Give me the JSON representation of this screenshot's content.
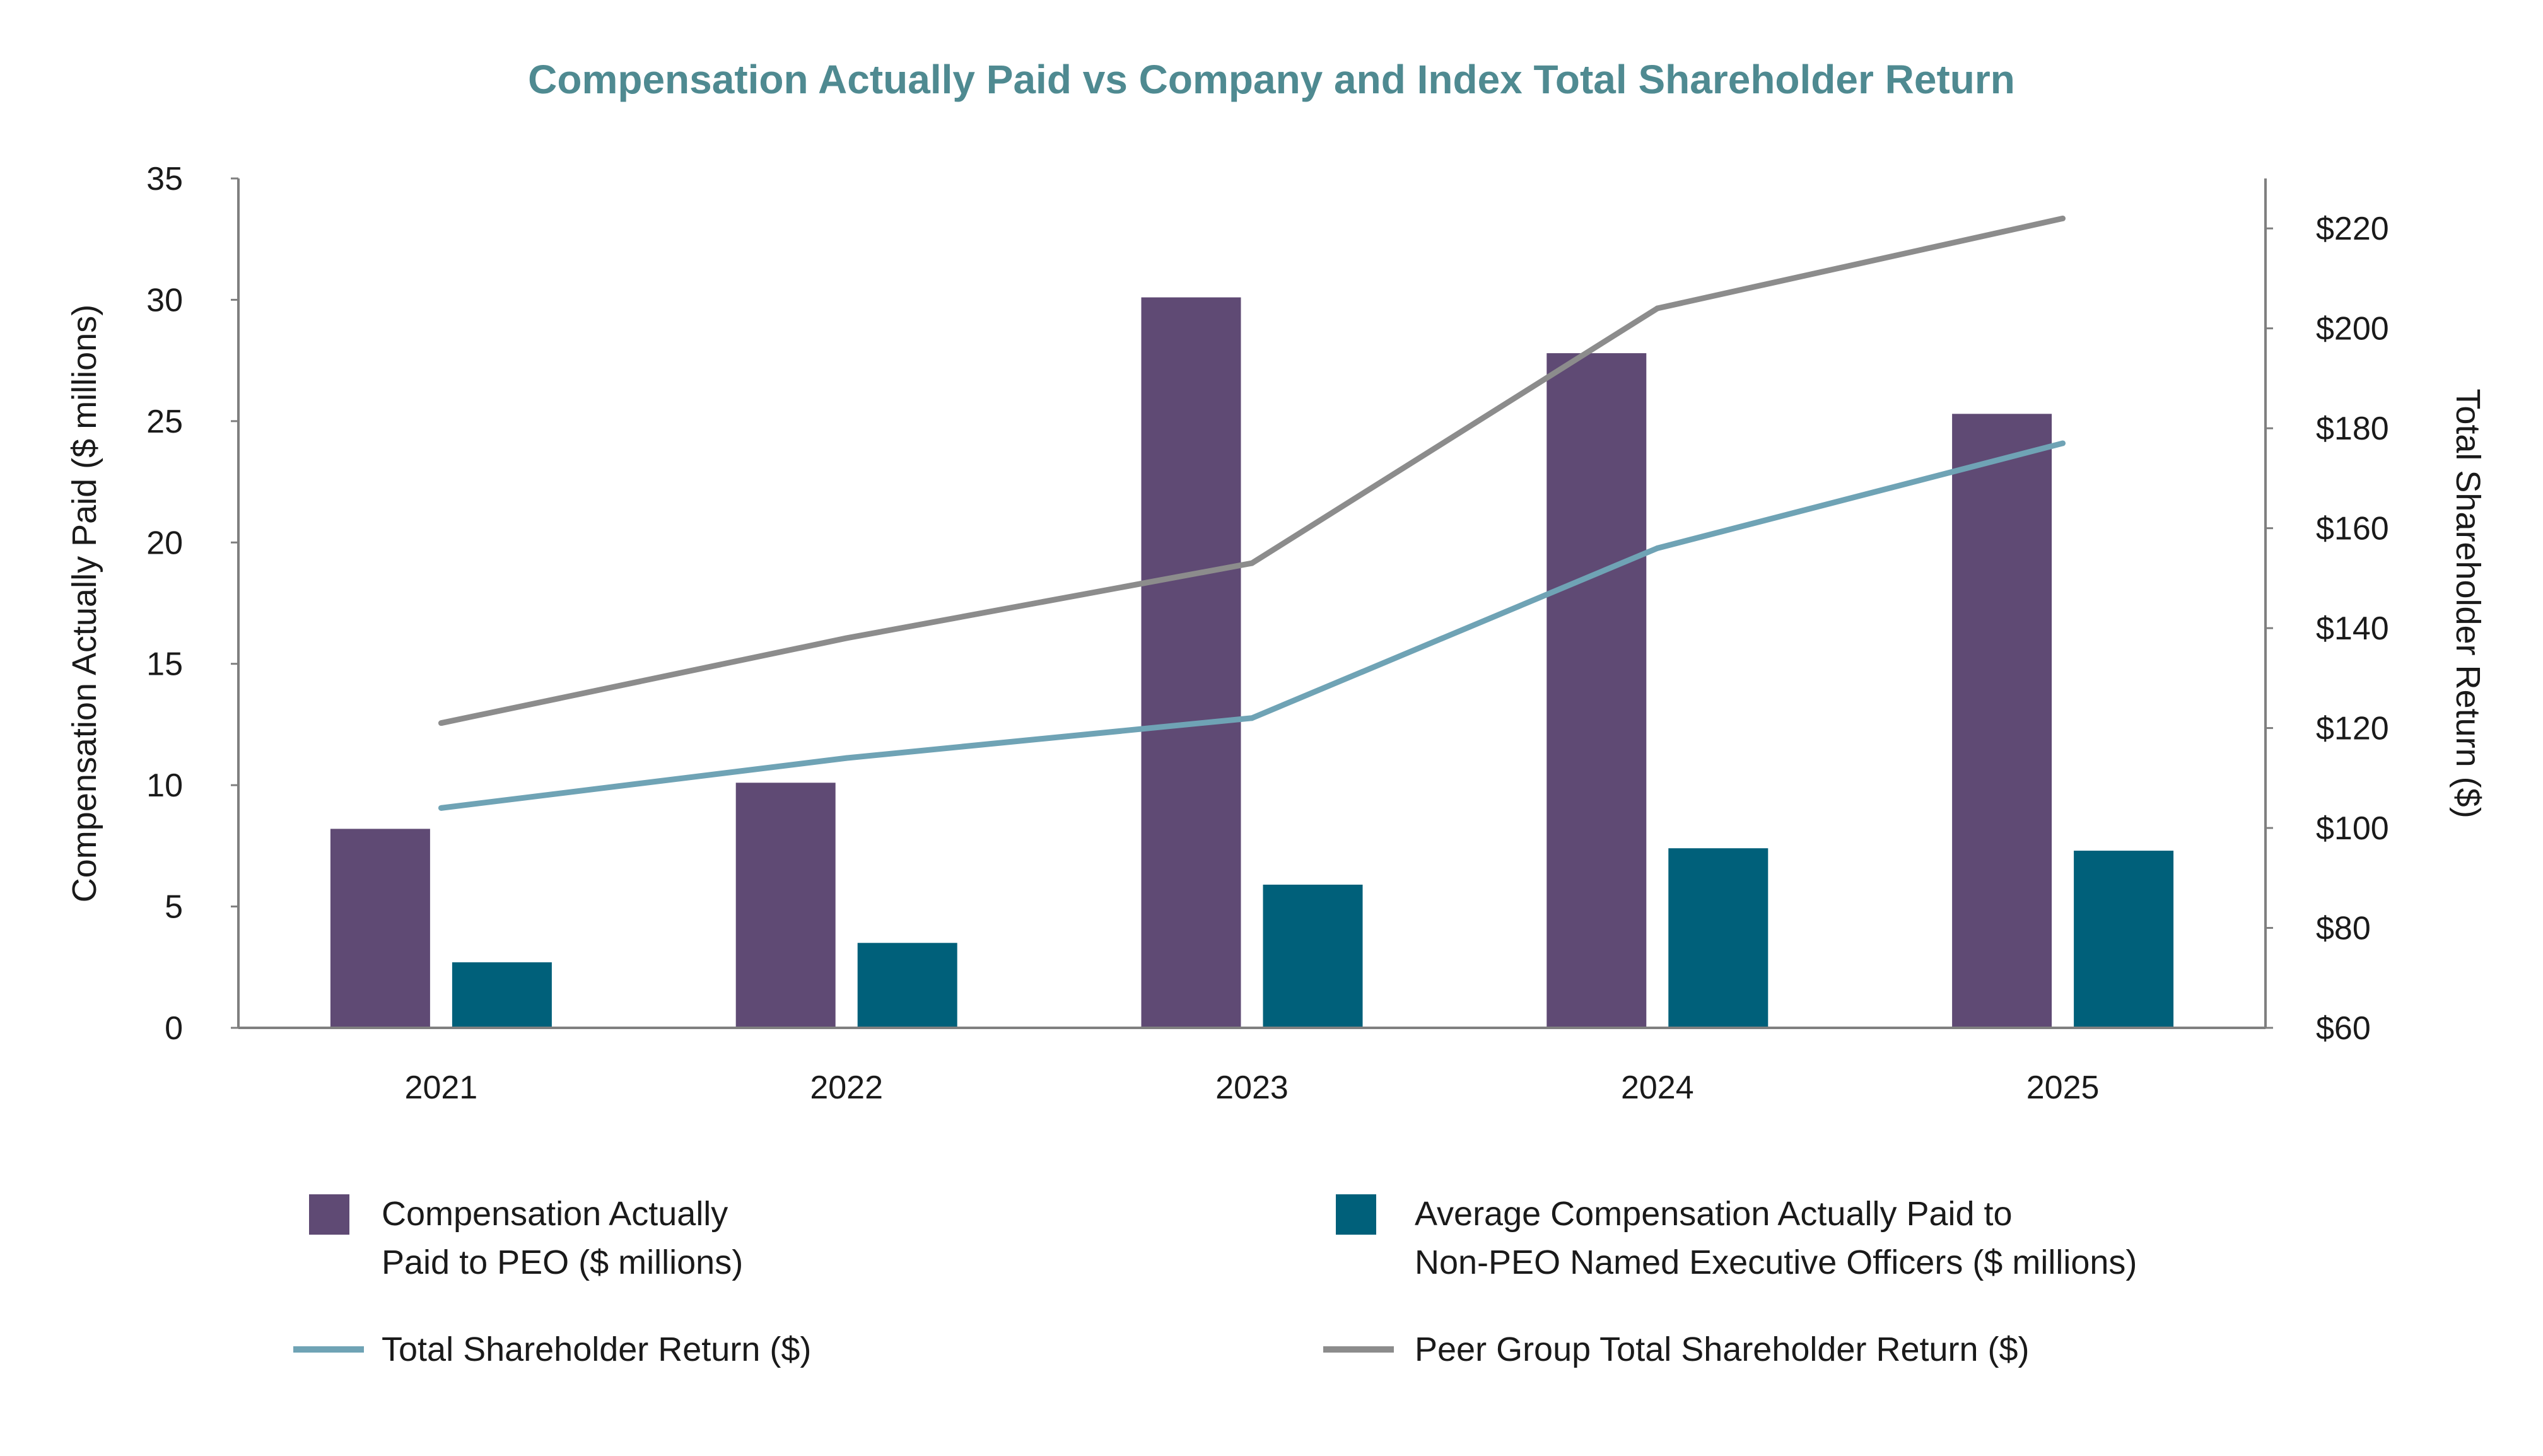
{
  "chart_data": {
    "type": "bar",
    "title": "Compensation Actually Paid vs Company and Index Total Shareholder Return",
    "categories": [
      "2021",
      "2022",
      "2023",
      "2024",
      "2025"
    ],
    "y_left": {
      "label": "Compensation Actually Paid ($ millions)",
      "range": [
        0,
        35
      ],
      "ticks": [
        0,
        5,
        10,
        15,
        20,
        25,
        30,
        35
      ],
      "tick_labels": [
        "0",
        "5",
        "10",
        "15",
        "20",
        "25",
        "30",
        "35"
      ]
    },
    "y_right": {
      "label": "Total Shareholder Return ($)",
      "range": [
        60,
        230
      ],
      "ticks": [
        60,
        80,
        100,
        120,
        140,
        160,
        180,
        200,
        220
      ],
      "tick_labels": [
        "$60",
        "$80",
        "$100",
        "$120",
        "$140",
        "$160",
        "$180",
        "$200",
        "$220"
      ]
    },
    "bar_series": [
      {
        "key": "peo",
        "name": "Compensation Actually Paid to PEO ($ millions)",
        "color": "#5f4a74",
        "values": [
          8.2,
          10.1,
          30.1,
          27.8,
          25.3
        ]
      },
      {
        "key": "neo",
        "name": "Average Compensation Actually Paid to Non-PEO Named Executive Officers ($ millions)",
        "color": "#00607a",
        "values": [
          2.7,
          3.5,
          5.9,
          7.4,
          7.3
        ]
      }
    ],
    "line_series": [
      {
        "key": "tsr",
        "name": "Total Shareholder Return ($)",
        "color": "#6fa3b5",
        "values": [
          104,
          114,
          122,
          156,
          177
        ]
      },
      {
        "key": "peer",
        "name": "Peer Group Total Shareholder Return ($)",
        "color": "#8c8c8c",
        "values": [
          121,
          138,
          153,
          204,
          222
        ]
      }
    ],
    "legend": {
      "placement": "bottom",
      "items": [
        {
          "key": "peo",
          "kind": "box",
          "lines": [
            "Compensation Actually",
            "Paid to PEO ($ millions)"
          ]
        },
        {
          "key": "neo",
          "kind": "box",
          "lines": [
            "Average Compensation Actually Paid to",
            "Non-PEO Named Executive Officers ($ millions)"
          ]
        },
        {
          "key": "tsr",
          "kind": "line",
          "lines": [
            "Total Shareholder Return ($)"
          ]
        },
        {
          "key": "peer",
          "kind": "line",
          "lines": [
            "Peer Group Total Shareholder Return ($)"
          ]
        }
      ]
    },
    "grid": false,
    "colors": {
      "title": "#4f8a91",
      "axis": "#7f7f7f",
      "text": "#1a1a1a"
    }
  }
}
